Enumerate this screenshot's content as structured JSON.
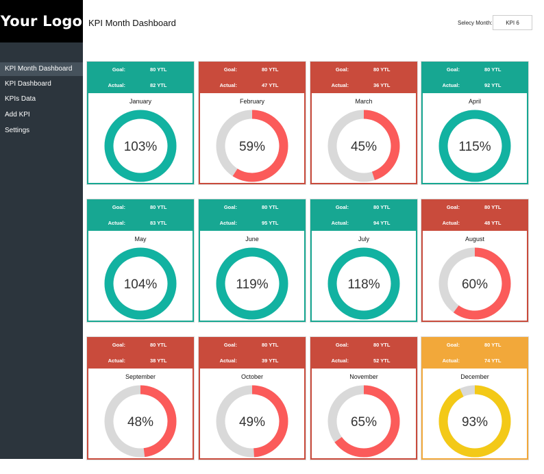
{
  "logo": "Your Logo",
  "header": {
    "title": "KPI Month Dashboard",
    "month_label": "Selecy Month:",
    "month_value": "KPI 6"
  },
  "sidebar": {
    "items": [
      {
        "label": "KPI Month Dashboard",
        "active": true
      },
      {
        "label": "KPI Dashboard",
        "active": false
      },
      {
        "label": "KPIs Data",
        "active": false
      },
      {
        "label": "Add KPI",
        "active": false
      },
      {
        "label": "Settings",
        "active": false
      }
    ]
  },
  "colors": {
    "teal": "#17a792",
    "red": "#c94b3c",
    "orange": "#f2a83a",
    "donut_teal": "#12b2a1",
    "donut_red": "#fb5b5a",
    "donut_yellow": "#f3c917",
    "donut_track": "#d9d9d9"
  },
  "cards": [
    {
      "month": "January",
      "goal_label": "Goal:",
      "goal": "80 YTL",
      "actual_label": "Actual:",
      "actual": "82 YTL",
      "percent_text": "103%",
      "percent": 103,
      "status": "teal"
    },
    {
      "month": "February",
      "goal_label": "Goal:",
      "goal": "80 YTL",
      "actual_label": "Actual:",
      "actual": "47 YTL",
      "percent_text": "59%",
      "percent": 59,
      "status": "red"
    },
    {
      "month": "March",
      "goal_label": "Goal:",
      "goal": "80 YTL",
      "actual_label": "Actual:",
      "actual": "36 YTL",
      "percent_text": "45%",
      "percent": 45,
      "status": "red"
    },
    {
      "month": "April",
      "goal_label": "Goal:",
      "goal": "80 YTL",
      "actual_label": "Actual:",
      "actual": "92 YTL",
      "percent_text": "115%",
      "percent": 115,
      "status": "teal"
    },
    {
      "month": "May",
      "goal_label": "Goal:",
      "goal": "80 YTL",
      "actual_label": "Actual:",
      "actual": "83 YTL",
      "percent_text": "104%",
      "percent": 104,
      "status": "teal"
    },
    {
      "month": "June",
      "goal_label": "Goal:",
      "goal": "80 YTL",
      "actual_label": "Actual:",
      "actual": "95 YTL",
      "percent_text": "119%",
      "percent": 119,
      "status": "teal"
    },
    {
      "month": "July",
      "goal_label": "Goal:",
      "goal": "80 YTL",
      "actual_label": "Actual:",
      "actual": "94 YTL",
      "percent_text": "118%",
      "percent": 118,
      "status": "teal"
    },
    {
      "month": "August",
      "goal_label": "Goal:",
      "goal": "80 YTL",
      "actual_label": "Actual:",
      "actual": "48 YTL",
      "percent_text": "60%",
      "percent": 60,
      "status": "red"
    },
    {
      "month": "September",
      "goal_label": "Goal:",
      "goal": "80 YTL",
      "actual_label": "Actual:",
      "actual": "38 YTL",
      "percent_text": "48%",
      "percent": 48,
      "status": "red"
    },
    {
      "month": "October",
      "goal_label": "Goal:",
      "goal": "80 YTL",
      "actual_label": "Actual:",
      "actual": "39 YTL",
      "percent_text": "49%",
      "percent": 49,
      "status": "red"
    },
    {
      "month": "November",
      "goal_label": "Goal:",
      "goal": "80 YTL",
      "actual_label": "Actual:",
      "actual": "52 YTL",
      "percent_text": "65%",
      "percent": 65,
      "status": "red"
    },
    {
      "month": "December",
      "goal_label": "Goal:",
      "goal": "80 YTL",
      "actual_label": "Actual:",
      "actual": "74 YTL",
      "percent_text": "93%",
      "percent": 93,
      "status": "orange"
    }
  ]
}
